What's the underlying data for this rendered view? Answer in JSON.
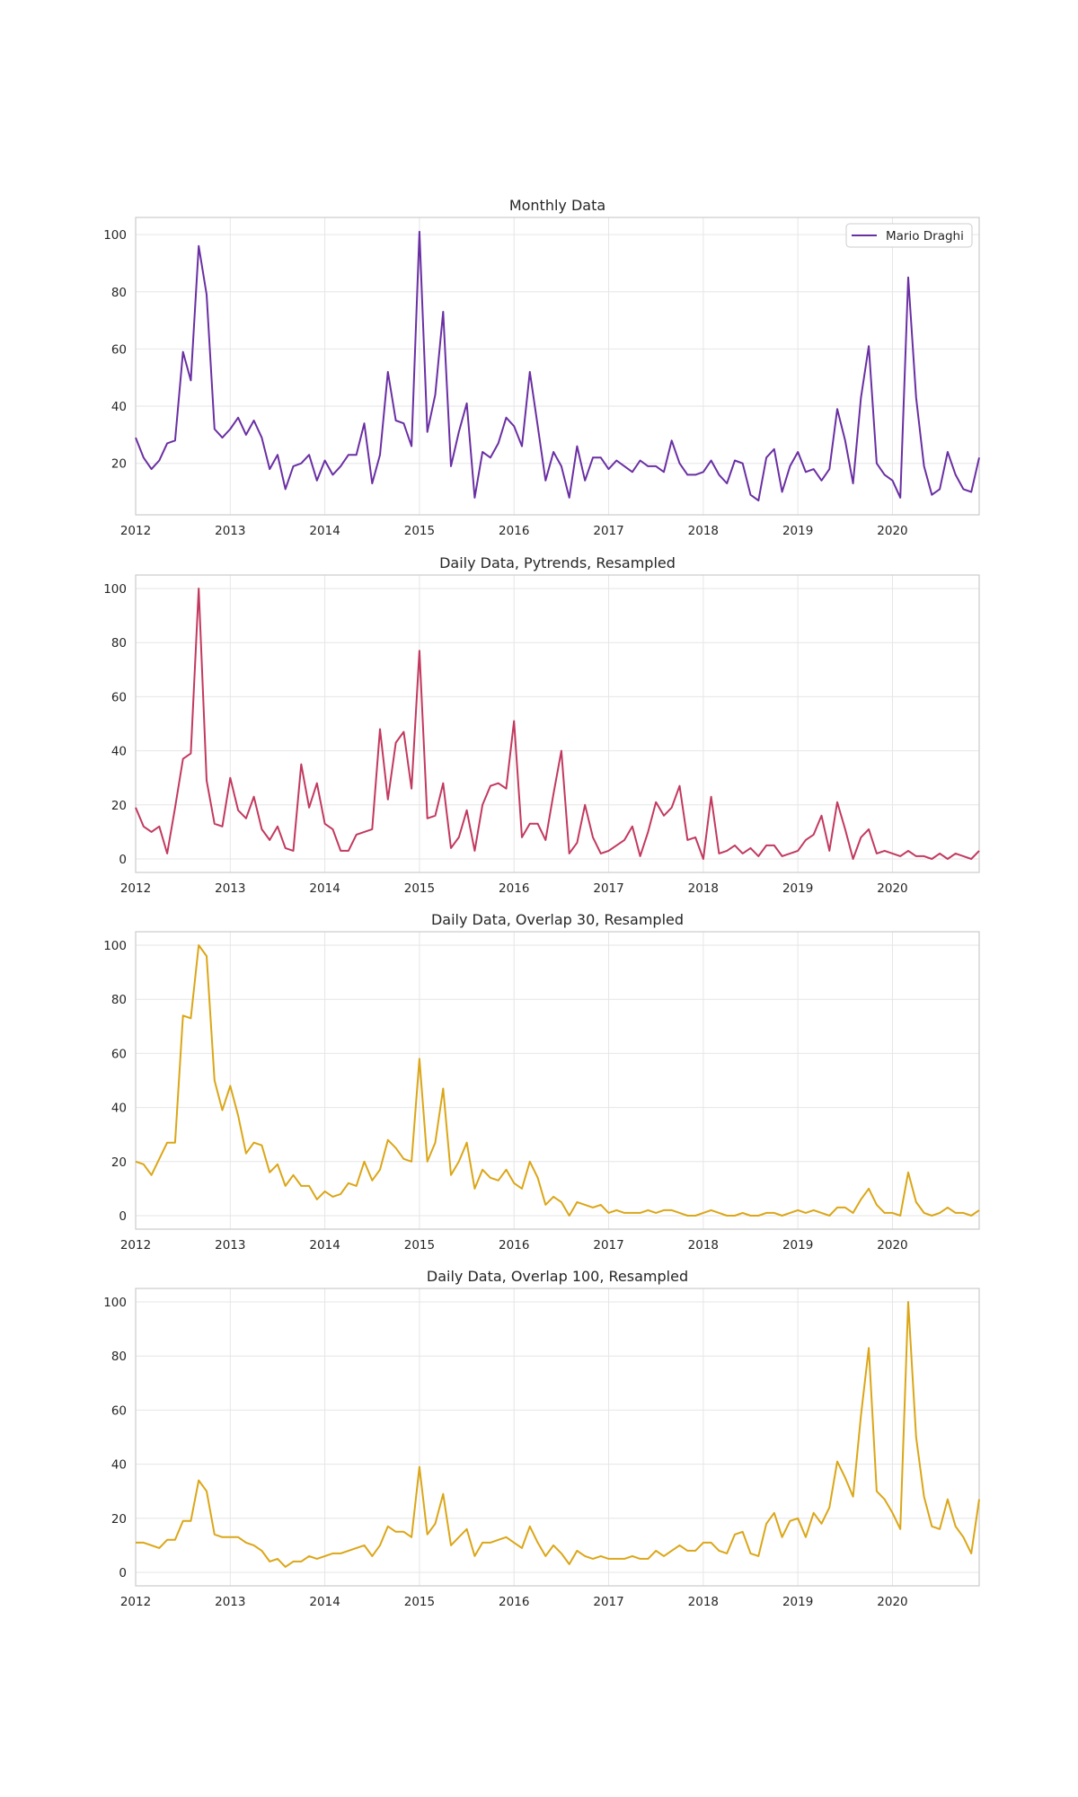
{
  "chart_data": [
    {
      "type": "line",
      "title": "Monthly Data",
      "color": "#6a2fa3",
      "legend": {
        "label": "Mario Draghi",
        "placement": "top-right"
      },
      "x_ticks": [
        "2012",
        "2013",
        "2014",
        "2015",
        "2016",
        "2017",
        "2018",
        "2019",
        "2020"
      ],
      "y_ticks": [
        20,
        40,
        60,
        80,
        100
      ],
      "ylim": [
        2,
        106
      ],
      "x_range": [
        "2012-01",
        "2020-12"
      ],
      "grid": true,
      "y": [
        29,
        22,
        18,
        21,
        27,
        28,
        59,
        49,
        96,
        79,
        32,
        29,
        32,
        36,
        30,
        35,
        29,
        18,
        23,
        11,
        19,
        20,
        23,
        14,
        21,
        16,
        19,
        23,
        23,
        34,
        13,
        23,
        52,
        35,
        34,
        26,
        101,
        31,
        44,
        73,
        19,
        31,
        41,
        8,
        24,
        22,
        27,
        36,
        33,
        26,
        52,
        33,
        14,
        24,
        19,
        8,
        26,
        14,
        22,
        22,
        18,
        21,
        19,
        17,
        21,
        19,
        19,
        17,
        28,
        20,
        16,
        16,
        17,
        21,
        16,
        13,
        21,
        20,
        9,
        7,
        22,
        25,
        10,
        19,
        24,
        17,
        18,
        14,
        18,
        39,
        28,
        13,
        43,
        61,
        20,
        16,
        14,
        8,
        85,
        43,
        19,
        9,
        11,
        24,
        16,
        11,
        10,
        22
      ]
    },
    {
      "type": "line",
      "title": "Daily Data, Pytrends, Resampled",
      "color": "#c2395f",
      "x_ticks": [
        "2012",
        "2013",
        "2014",
        "2015",
        "2016",
        "2017",
        "2018",
        "2019",
        "2020"
      ],
      "y_ticks": [
        0,
        20,
        40,
        60,
        80,
        100
      ],
      "ylim": [
        -5,
        105
      ],
      "x_range": [
        "2012-01",
        "2020-12"
      ],
      "grid": true,
      "y": [
        19,
        12,
        10,
        12,
        2,
        19,
        37,
        39,
        100,
        29,
        13,
        12,
        30,
        18,
        15,
        23,
        11,
        7,
        12,
        4,
        3,
        35,
        19,
        28,
        13,
        11,
        3,
        3,
        9,
        10,
        11,
        48,
        22,
        43,
        47,
        26,
        77,
        15,
        16,
        28,
        4,
        8,
        18,
        3,
        20,
        27,
        28,
        26,
        51,
        8,
        13,
        13,
        7,
        24,
        40,
        2,
        6,
        20,
        8,
        2,
        3,
        5,
        7,
        12,
        1,
        10,
        21,
        16,
        19,
        27,
        7,
        8,
        0,
        23,
        2,
        3,
        5,
        2,
        4,
        1,
        5,
        5,
        1,
        2,
        3,
        7,
        9,
        16,
        3,
        21,
        11,
        0,
        8,
        11,
        2,
        3,
        2,
        1,
        3,
        1,
        1,
        0,
        2,
        0,
        2,
        1,
        0,
        3
      ]
    },
    {
      "type": "line",
      "title": "Daily Data, Overlap 30, Resampled",
      "color": "#dba617",
      "x_ticks": [
        "2012",
        "2013",
        "2014",
        "2015",
        "2016",
        "2017",
        "2018",
        "2019",
        "2020"
      ],
      "y_ticks": [
        0,
        20,
        40,
        60,
        80,
        100
      ],
      "ylim": [
        -5,
        105
      ],
      "x_range": [
        "2012-01",
        "2020-12"
      ],
      "grid": true,
      "y": [
        20,
        19,
        15,
        21,
        27,
        27,
        74,
        73,
        100,
        96,
        50,
        39,
        48,
        37,
        23,
        27,
        26,
        16,
        19,
        11,
        15,
        11,
        11,
        6,
        9,
        7,
        8,
        12,
        11,
        20,
        13,
        17,
        28,
        25,
        21,
        20,
        58,
        20,
        27,
        47,
        15,
        20,
        27,
        10,
        17,
        14,
        13,
        17,
        12,
        10,
        20,
        14,
        4,
        7,
        5,
        0,
        5,
        4,
        3,
        4,
        1,
        2,
        1,
        1,
        1,
        2,
        1,
        2,
        2,
        1,
        0,
        0,
        1,
        2,
        1,
        0,
        0,
        1,
        0,
        0,
        1,
        1,
        0,
        1,
        2,
        1,
        2,
        1,
        0,
        3,
        3,
        1,
        6,
        10,
        4,
        1,
        1,
        0,
        16,
        5,
        1,
        0,
        1,
        3,
        1,
        1,
        0,
        2
      ]
    },
    {
      "type": "line",
      "title": "Daily Data, Overlap 100, Resampled",
      "color": "#dba617",
      "x_ticks": [
        "2012",
        "2013",
        "2014",
        "2015",
        "2016",
        "2017",
        "2018",
        "2019",
        "2020"
      ],
      "y_ticks": [
        0,
        20,
        40,
        60,
        80,
        100
      ],
      "ylim": [
        -5,
        105
      ],
      "x_range": [
        "2012-01",
        "2020-12"
      ],
      "grid": true,
      "y": [
        11,
        11,
        10,
        9,
        12,
        12,
        19,
        19,
        34,
        30,
        14,
        13,
        13,
        13,
        11,
        10,
        8,
        4,
        5,
        2,
        4,
        4,
        6,
        5,
        6,
        7,
        7,
        8,
        9,
        10,
        6,
        10,
        17,
        15,
        15,
        13,
        39,
        14,
        18,
        29,
        10,
        13,
        16,
        6,
        11,
        11,
        12,
        13,
        11,
        9,
        17,
        11,
        6,
        10,
        7,
        3,
        8,
        6,
        5,
        6,
        5,
        5,
        5,
        6,
        5,
        5,
        8,
        6,
        8,
        10,
        8,
        8,
        11,
        11,
        8,
        7,
        14,
        15,
        7,
        6,
        18,
        22,
        13,
        19,
        20,
        13,
        22,
        18,
        24,
        41,
        35,
        28,
        58,
        83,
        30,
        27,
        22,
        16,
        100,
        50,
        28,
        17,
        16,
        27,
        17,
        13,
        7,
        27
      ]
    }
  ]
}
